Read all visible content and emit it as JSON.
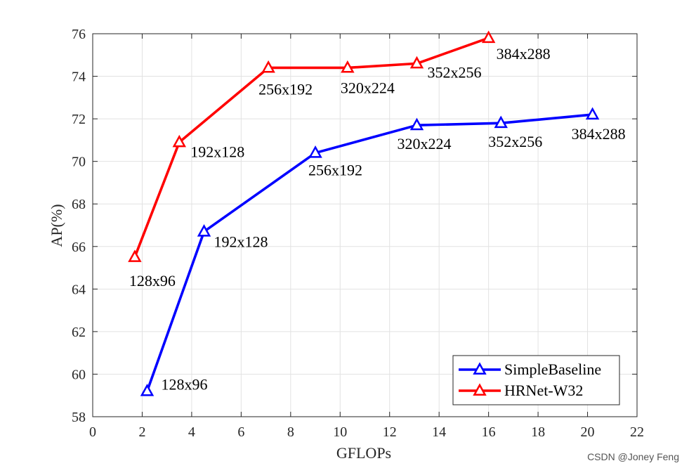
{
  "chart_data": {
    "type": "line",
    "xlabel": "GFLOPs",
    "ylabel": "AP(%)",
    "xlim": [
      0,
      22
    ],
    "ylim": [
      58,
      76
    ],
    "xticks": [
      "0",
      "2",
      "4",
      "6",
      "8",
      "10",
      "12",
      "14",
      "16",
      "18",
      "20",
      "22"
    ],
    "yticks": [
      "58",
      "60",
      "62",
      "64",
      "66",
      "68",
      "70",
      "72",
      "74",
      "76"
    ],
    "grid": true,
    "legend_position": "bottom-right",
    "series": [
      {
        "name": "SimpleBaseline",
        "color": "#0000ff",
        "marker": "triangle",
        "x": [
          2.2,
          4.5,
          9.0,
          13.1,
          16.5,
          20.2
        ],
        "y": [
          59.2,
          66.7,
          70.4,
          71.7,
          71.8,
          72.2
        ],
        "labels": [
          "128x96",
          "192x128",
          "256x192",
          "320x224",
          "352x256",
          "384x288"
        ]
      },
      {
        "name": "HRNet-W32",
        "color": "#ff0000",
        "marker": "triangle",
        "x": [
          1.7,
          3.5,
          7.1,
          10.3,
          13.1,
          16.0
        ],
        "y": [
          65.5,
          70.9,
          74.4,
          74.4,
          74.6,
          75.8
        ],
        "labels": [
          "128x96",
          "192x128",
          "256x192",
          "320x224",
          "352x256",
          "384x288"
        ]
      }
    ]
  },
  "watermark": "CSDN @Joney Feng"
}
